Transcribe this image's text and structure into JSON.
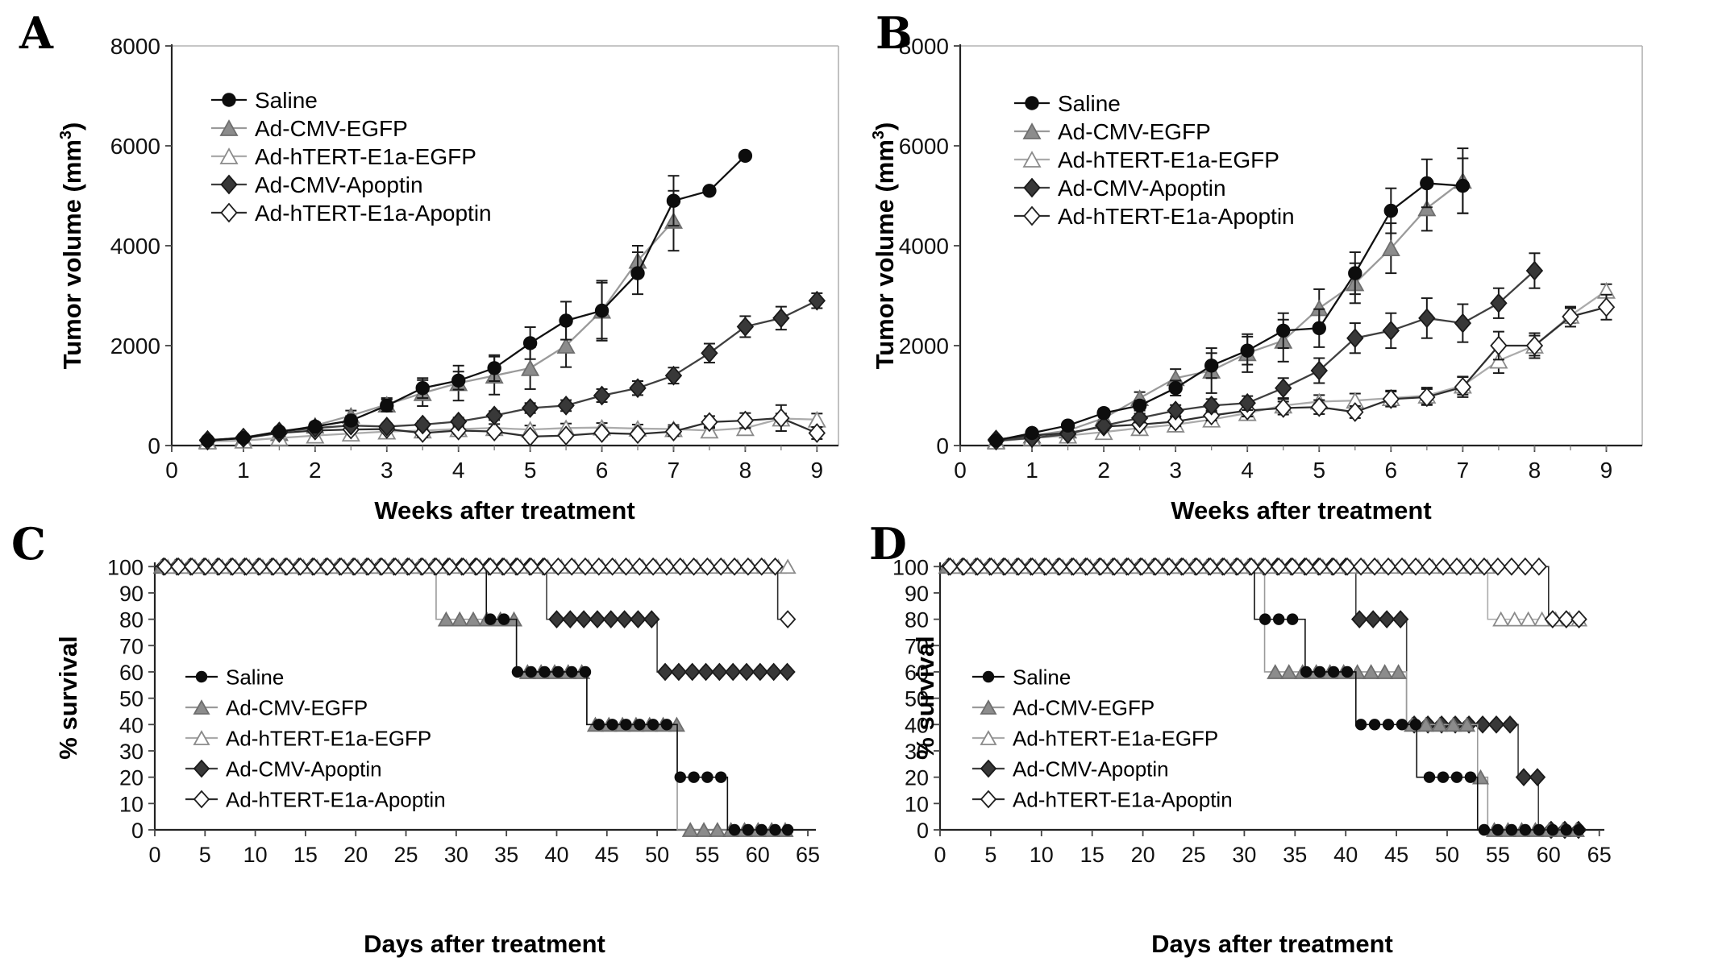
{
  "figure_labels": {
    "a": "A",
    "b": "B",
    "c": "C",
    "d": "D"
  },
  "chart_data": [
    {
      "id": "A",
      "type": "line",
      "panel_label": "A",
      "x_title": "Weeks after treatment",
      "y_title": "Tumor volume (mm",
      "y_title_sup": "3",
      "y_title_suffix": ")",
      "xlim": [
        0,
        9.3
      ],
      "ylim": [
        0,
        8000
      ],
      "xticks": [
        0,
        1,
        2,
        3,
        4,
        5,
        6,
        7,
        8,
        9
      ],
      "x_minor_step": 0.5,
      "yticks": [
        0,
        2000,
        4000,
        6000,
        8000
      ],
      "legend_position": "inside-top-left",
      "grid": false,
      "series": [
        {
          "name": "Saline",
          "marker": "circle",
          "line_color": "#111111",
          "fill": "#0d0d0d",
          "stroke": "#0d0d0d",
          "z": 5,
          "x": [
            0.5,
            1,
            1.5,
            2,
            2.5,
            3,
            3.5,
            4,
            4.5,
            5,
            5.5,
            6,
            6.5,
            7,
            7.5,
            8
          ],
          "y": [
            100,
            150,
            280,
            380,
            500,
            800,
            1150,
            1300,
            1550,
            2050,
            2500,
            2700,
            3450,
            4900,
            5100,
            5800
          ],
          "err": [
            40,
            40,
            60,
            60,
            90,
            120,
            200,
            180,
            260,
            320,
            380,
            560,
            420,
            500,
            0,
            0
          ]
        },
        {
          "name": "Ad-CMV-EGFP",
          "marker": "triangle",
          "line_color": "#9a9a9a",
          "fill": "#8c8c8c",
          "stroke": "#6e6e6e",
          "z": 1,
          "x": [
            0.5,
            1,
            1.5,
            2,
            2.5,
            3,
            3.5,
            4,
            4.5,
            5,
            5.5,
            6,
            6.5,
            7
          ],
          "y": [
            100,
            140,
            250,
            400,
            600,
            820,
            1050,
            1250,
            1400,
            1550,
            2000,
            2700,
            3700,
            4500
          ],
          "err": [
            40,
            40,
            50,
            60,
            100,
            130,
            260,
            350,
            380,
            420,
            430,
            600,
            300,
            600
          ]
        },
        {
          "name": "Ad-hTERT-E1a-EGFP",
          "marker": "triangle",
          "line_color": "#ababab",
          "fill": "#ffffff",
          "stroke": "#8a8a8a",
          "z": 2,
          "x": [
            0.5,
            1,
            1.5,
            2,
            2.5,
            3,
            3.5,
            4,
            4.5,
            5,
            5.5,
            6,
            6.5,
            7,
            7.5,
            8,
            8.5,
            9
          ],
          "y": [
            80,
            100,
            150,
            200,
            240,
            280,
            300,
            330,
            350,
            320,
            350,
            360,
            340,
            330,
            300,
            350,
            540,
            520
          ],
          "err": [
            30,
            30,
            40,
            40,
            50,
            60,
            60,
            70,
            80,
            80,
            90,
            90,
            80,
            80,
            70,
            80,
            100,
            120
          ]
        },
        {
          "name": "Ad-CMV-Apoptin",
          "marker": "diamond",
          "line_color": "#3f3f3f",
          "fill": "#383838",
          "stroke": "#1a1a1a",
          "z": 4,
          "x": [
            0.5,
            1,
            1.5,
            2,
            2.5,
            3,
            3.5,
            4,
            4.5,
            5,
            5.5,
            6,
            6.5,
            7,
            7.5,
            8,
            8.5,
            9
          ],
          "y": [
            100,
            160,
            280,
            350,
            400,
            380,
            420,
            480,
            600,
            750,
            800,
            1000,
            1150,
            1400,
            1850,
            2380,
            2550,
            2900
          ],
          "err": [
            30,
            30,
            40,
            50,
            60,
            60,
            70,
            80,
            90,
            100,
            110,
            130,
            140,
            160,
            190,
            210,
            230,
            150
          ]
        },
        {
          "name": "Ad-hTERT-E1a-Apoptin",
          "marker": "diamond",
          "line_color": "#2e2e2e",
          "fill": "#ffffff",
          "stroke": "#1f1f1f",
          "z": 3,
          "x": [
            0.5,
            1,
            1.5,
            2,
            2.5,
            3,
            3.5,
            4,
            4.5,
            5,
            5.5,
            6,
            6.5,
            7,
            7.5,
            8,
            8.5,
            9
          ],
          "y": [
            110,
            150,
            250,
            300,
            320,
            330,
            250,
            300,
            280,
            180,
            200,
            250,
            230,
            280,
            470,
            500,
            550,
            250
          ],
          "err": [
            30,
            30,
            40,
            50,
            60,
            60,
            80,
            70,
            70,
            60,
            60,
            70,
            70,
            90,
            120,
            150,
            260,
            120
          ]
        }
      ]
    },
    {
      "id": "B",
      "type": "line",
      "panel_label": "B",
      "x_title": "Weeks after treatment",
      "y_title": "Tumor volume (mm",
      "y_title_sup": "3",
      "y_title_suffix": ")",
      "xlim": [
        0,
        9.5
      ],
      "ylim": [
        0,
        8000
      ],
      "xticks": [
        0,
        1,
        2,
        3,
        4,
        5,
        6,
        7,
        8,
        9
      ],
      "x_minor_step": 0.5,
      "yticks": [
        0,
        2000,
        4000,
        6000,
        8000
      ],
      "legend_position": "inside-top-left",
      "grid": false,
      "series": [
        {
          "name": "Saline",
          "marker": "circle",
          "line_color": "#111111",
          "fill": "#0d0d0d",
          "stroke": "#0d0d0d",
          "z": 5,
          "x": [
            0.5,
            1,
            1.5,
            2,
            2.5,
            3,
            3.5,
            4,
            4.5,
            5,
            5.5,
            6,
            6.5,
            7
          ],
          "y": [
            100,
            250,
            400,
            650,
            800,
            1150,
            1600,
            1900,
            2300,
            2350,
            3450,
            4700,
            5250,
            5200
          ],
          "err": [
            40,
            50,
            60,
            80,
            100,
            150,
            250,
            280,
            350,
            380,
            420,
            450,
            480,
            550
          ]
        },
        {
          "name": "Ad-CMV-EGFP",
          "marker": "triangle",
          "line_color": "#9a9a9a",
          "fill": "#8c8c8c",
          "stroke": "#6e6e6e",
          "z": 1,
          "x": [
            0.5,
            1,
            1.5,
            2,
            2.5,
            3,
            3.5,
            4,
            4.5,
            5,
            5.5,
            6,
            6.5,
            7
          ],
          "y": [
            100,
            200,
            300,
            550,
            950,
            1350,
            1500,
            1850,
            2100,
            2750,
            3250,
            3950,
            4750,
            5300
          ],
          "err": [
            40,
            50,
            60,
            90,
            120,
            180,
            450,
            380,
            420,
            380,
            400,
            500,
            450,
            650
          ]
        },
        {
          "name": "Ad-hTERT-E1a-EGFP",
          "marker": "triangle",
          "line_color": "#ababab",
          "fill": "#ffffff",
          "stroke": "#8a8a8a",
          "z": 2,
          "x": [
            0.5,
            1,
            1.5,
            2,
            2.5,
            3,
            3.5,
            4,
            4.5,
            5,
            5.5,
            6,
            6.5,
            7,
            7.5,
            8,
            8.5,
            9
          ],
          "y": [
            80,
            150,
            200,
            270,
            350,
            420,
            520,
            650,
            800,
            880,
            900,
            950,
            1000,
            1200,
            1700,
            2000,
            2600,
            3100
          ],
          "err": [
            30,
            40,
            50,
            60,
            80,
            90,
            100,
            120,
            130,
            130,
            140,
            150,
            160,
            180,
            250,
            200,
            150,
            130
          ]
        },
        {
          "name": "Ad-CMV-Apoptin",
          "marker": "diamond",
          "line_color": "#3f3f3f",
          "fill": "#383838",
          "stroke": "#1a1a1a",
          "z": 4,
          "x": [
            0.5,
            1,
            1.5,
            2,
            2.5,
            3,
            3.5,
            4,
            4.5,
            5,
            5.5,
            6,
            6.5,
            7,
            7.5,
            8
          ],
          "y": [
            100,
            150,
            230,
            400,
            550,
            700,
            800,
            850,
            1150,
            1500,
            2150,
            2300,
            2550,
            2450,
            2850,
            3500
          ],
          "err": [
            30,
            40,
            50,
            70,
            90,
            110,
            130,
            140,
            200,
            250,
            300,
            350,
            400,
            380,
            300,
            350
          ]
        },
        {
          "name": "Ad-hTERT-E1a-Apoptin",
          "marker": "diamond",
          "line_color": "#2e2e2e",
          "fill": "#ffffff",
          "stroke": "#1f1f1f",
          "z": 3,
          "x": [
            0.5,
            1,
            1.5,
            2,
            2.5,
            3,
            3.5,
            4,
            4.5,
            5,
            5.5,
            6,
            6.5,
            7,
            7.5,
            8,
            8.5,
            9
          ],
          "y": [
            120,
            200,
            250,
            380,
            420,
            480,
            600,
            700,
            750,
            770,
            670,
            930,
            970,
            1170,
            2000,
            2000,
            2580,
            2770
          ],
          "err": [
            40,
            50,
            60,
            70,
            80,
            90,
            100,
            120,
            130,
            140,
            120,
            150,
            160,
            200,
            280,
            250,
            200,
            250
          ]
        }
      ]
    },
    {
      "id": "C",
      "type": "step",
      "panel_label": "C",
      "x_title": "Days after treatment",
      "y_title": "% survival",
      "xlim": [
        0,
        65.8
      ],
      "ylim": [
        0,
        101
      ],
      "xticks": [
        0,
        5,
        10,
        15,
        20,
        25,
        30,
        35,
        40,
        45,
        50,
        55,
        60,
        65
      ],
      "yticks": [
        0,
        10,
        20,
        30,
        40,
        50,
        60,
        70,
        80,
        90,
        100
      ],
      "legend_position": "inside-mid-left",
      "grid": false,
      "start_value": 100,
      "end_day": 63,
      "marker_interval": 1.35,
      "series": [
        {
          "name": "Saline",
          "marker": "circle",
          "line_color": "#111111",
          "fill": "#0d0d0d",
          "stroke": "#0d0d0d",
          "z": 4,
          "phase": 1.0,
          "steps": [
            [
              33,
              80
            ],
            [
              36,
              60
            ],
            [
              43,
              40
            ],
            [
              52,
              20
            ],
            [
              57,
              0
            ]
          ]
        },
        {
          "name": "Ad-CMV-EGFP",
          "marker": "triangle",
          "line_color": "#9a9a9a",
          "fill": "#8c8c8c",
          "stroke": "#6e6e6e",
          "z": 2,
          "phase": 0.65,
          "steps": [
            [
              28,
              80
            ],
            [
              36,
              60
            ],
            [
              43,
              40
            ],
            [
              52,
              0
            ]
          ]
        },
        {
          "name": "Ad-hTERT-E1a-EGFP",
          "marker": "triangle",
          "line_color": "#ababab",
          "fill": "#ffffff",
          "stroke": "#8a8a8a",
          "z": 3,
          "phase": 1.3,
          "steps": []
        },
        {
          "name": "Ad-CMV-Apoptin",
          "marker": "diamond",
          "line_color": "#3f3f3f",
          "fill": "#383838",
          "stroke": "#1a1a1a",
          "z": 1,
          "phase": 0.85,
          "steps": [
            [
              39,
              80
            ],
            [
              50,
              60
            ]
          ]
        },
        {
          "name": "Ad-hTERT-E1a-Apoptin",
          "marker": "diamond",
          "line_color": "#2e2e2e",
          "fill": "#ffffff",
          "stroke": "#1f1f1f",
          "z": 5,
          "phase": 1.0,
          "steps": [
            [
              62,
              80
            ]
          ]
        }
      ]
    },
    {
      "id": "D",
      "type": "step",
      "panel_label": "D",
      "x_title": "Days after treatment",
      "y_title": "% survival",
      "xlim": [
        0,
        65.5
      ],
      "ylim": [
        0,
        101
      ],
      "xticks": [
        0,
        5,
        10,
        15,
        20,
        25,
        30,
        35,
        40,
        45,
        50,
        55,
        60,
        65
      ],
      "yticks": [
        0,
        10,
        20,
        30,
        40,
        50,
        60,
        70,
        80,
        90,
        100
      ],
      "legend_position": "inside-mid-left",
      "grid": false,
      "start_value": 100,
      "end_day": 63,
      "marker_interval": 1.35,
      "series": [
        {
          "name": "Saline",
          "marker": "circle",
          "line_color": "#111111",
          "fill": "#0d0d0d",
          "stroke": "#0d0d0d",
          "z": 4,
          "phase": 1.0,
          "steps": [
            [
              31,
              80
            ],
            [
              36,
              60
            ],
            [
              41,
              40
            ],
            [
              47,
              20
            ],
            [
              53,
              0
            ]
          ]
        },
        {
          "name": "Ad-CMV-EGFP",
          "marker": "triangle",
          "line_color": "#9a9a9a",
          "fill": "#8c8c8c",
          "stroke": "#6e6e6e",
          "z": 2,
          "phase": 0.65,
          "steps": [
            [
              32,
              60
            ],
            [
              46,
              40
            ],
            [
              53,
              20
            ],
            [
              54,
              0
            ]
          ]
        },
        {
          "name": "Ad-hTERT-E1a-EGFP",
          "marker": "triangle",
          "line_color": "#ababab",
          "fill": "#ffffff",
          "stroke": "#8a8a8a",
          "z": 3,
          "phase": 1.3,
          "steps": [
            [
              54,
              80
            ]
          ]
        },
        {
          "name": "Ad-CMV-Apoptin",
          "marker": "diamond",
          "line_color": "#3f3f3f",
          "fill": "#383838",
          "stroke": "#1a1a1a",
          "z": 1,
          "phase": 0.85,
          "steps": [
            [
              41,
              80
            ],
            [
              46,
              40
            ],
            [
              57,
              20
            ],
            [
              59,
              0
            ]
          ]
        },
        {
          "name": "Ad-hTERT-E1a-Apoptin",
          "marker": "diamond",
          "line_color": "#2e2e2e",
          "fill": "#ffffff",
          "stroke": "#1f1f1f",
          "z": 5,
          "phase": 1.0,
          "steps": [
            [
              60,
              80
            ]
          ]
        }
      ]
    }
  ]
}
